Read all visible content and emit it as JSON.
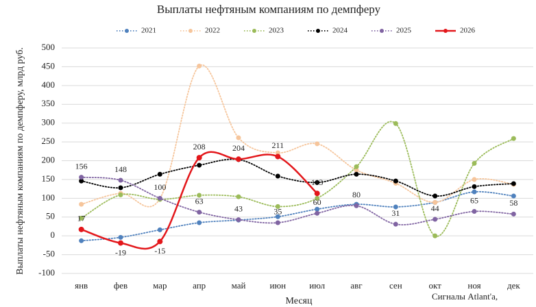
{
  "chart_data": {
    "type": "line",
    "title": "Выплаты нефтяным компаниям по демпферу",
    "x_label": "Месяц",
    "y_label": "Выплаты нефтяным компаниям по демпферу, млрд руб.",
    "annotation": "Сигналы Atlant'a,",
    "categories": [
      "янв",
      "фев",
      "мар",
      "апр",
      "май",
      "июн",
      "июл",
      "авг",
      "сен",
      "окт",
      "ноя",
      "дек"
    ],
    "ylim": [
      -100,
      500
    ],
    "yticks": [
      -100,
      -50,
      0,
      50,
      100,
      150,
      200,
      250,
      300,
      350,
      400,
      450,
      500
    ],
    "grid": true,
    "smooth": true,
    "legend": "top",
    "series": [
      {
        "name": "2021",
        "color": "#4f81bd",
        "dash": "dotted",
        "data_labels": false,
        "values": [
          -13,
          -4,
          16,
          35,
          42,
          51,
          71,
          84,
          77,
          89,
          117,
          106
        ]
      },
      {
        "name": "2022",
        "color": "#f6c59b",
        "dash": "dotted",
        "data_labels": false,
        "values": [
          84,
          113,
          99,
          452,
          261,
          221,
          245,
          175,
          140,
          89,
          150,
          137
        ]
      },
      {
        "name": "2023",
        "color": "#9bbb59",
        "dash": "dotted",
        "data_labels": false,
        "values": [
          47,
          109,
          97,
          108,
          104,
          78,
          100,
          184,
          299,
          0,
          193,
          259
        ]
      },
      {
        "name": "2024",
        "color": "#000000",
        "dash": "dotted",
        "data_labels": false,
        "values": [
          146,
          128,
          164,
          188,
          203,
          159,
          142,
          164,
          146,
          106,
          131,
          139
        ]
      },
      {
        "name": "2025",
        "color": "#8064a2",
        "dash": "dotted",
        "data_labels": true,
        "values": [
          156,
          148,
          100,
          63,
          43,
          35,
          60,
          80,
          31,
          44,
          65,
          58
        ]
      },
      {
        "name": "2026",
        "color": "#e3171b",
        "dash": "solid",
        "data_labels": true,
        "values": [
          17,
          -19,
          -15,
          208,
          204,
          211,
          113,
          null,
          null,
          null,
          null,
          null
        ]
      }
    ]
  }
}
